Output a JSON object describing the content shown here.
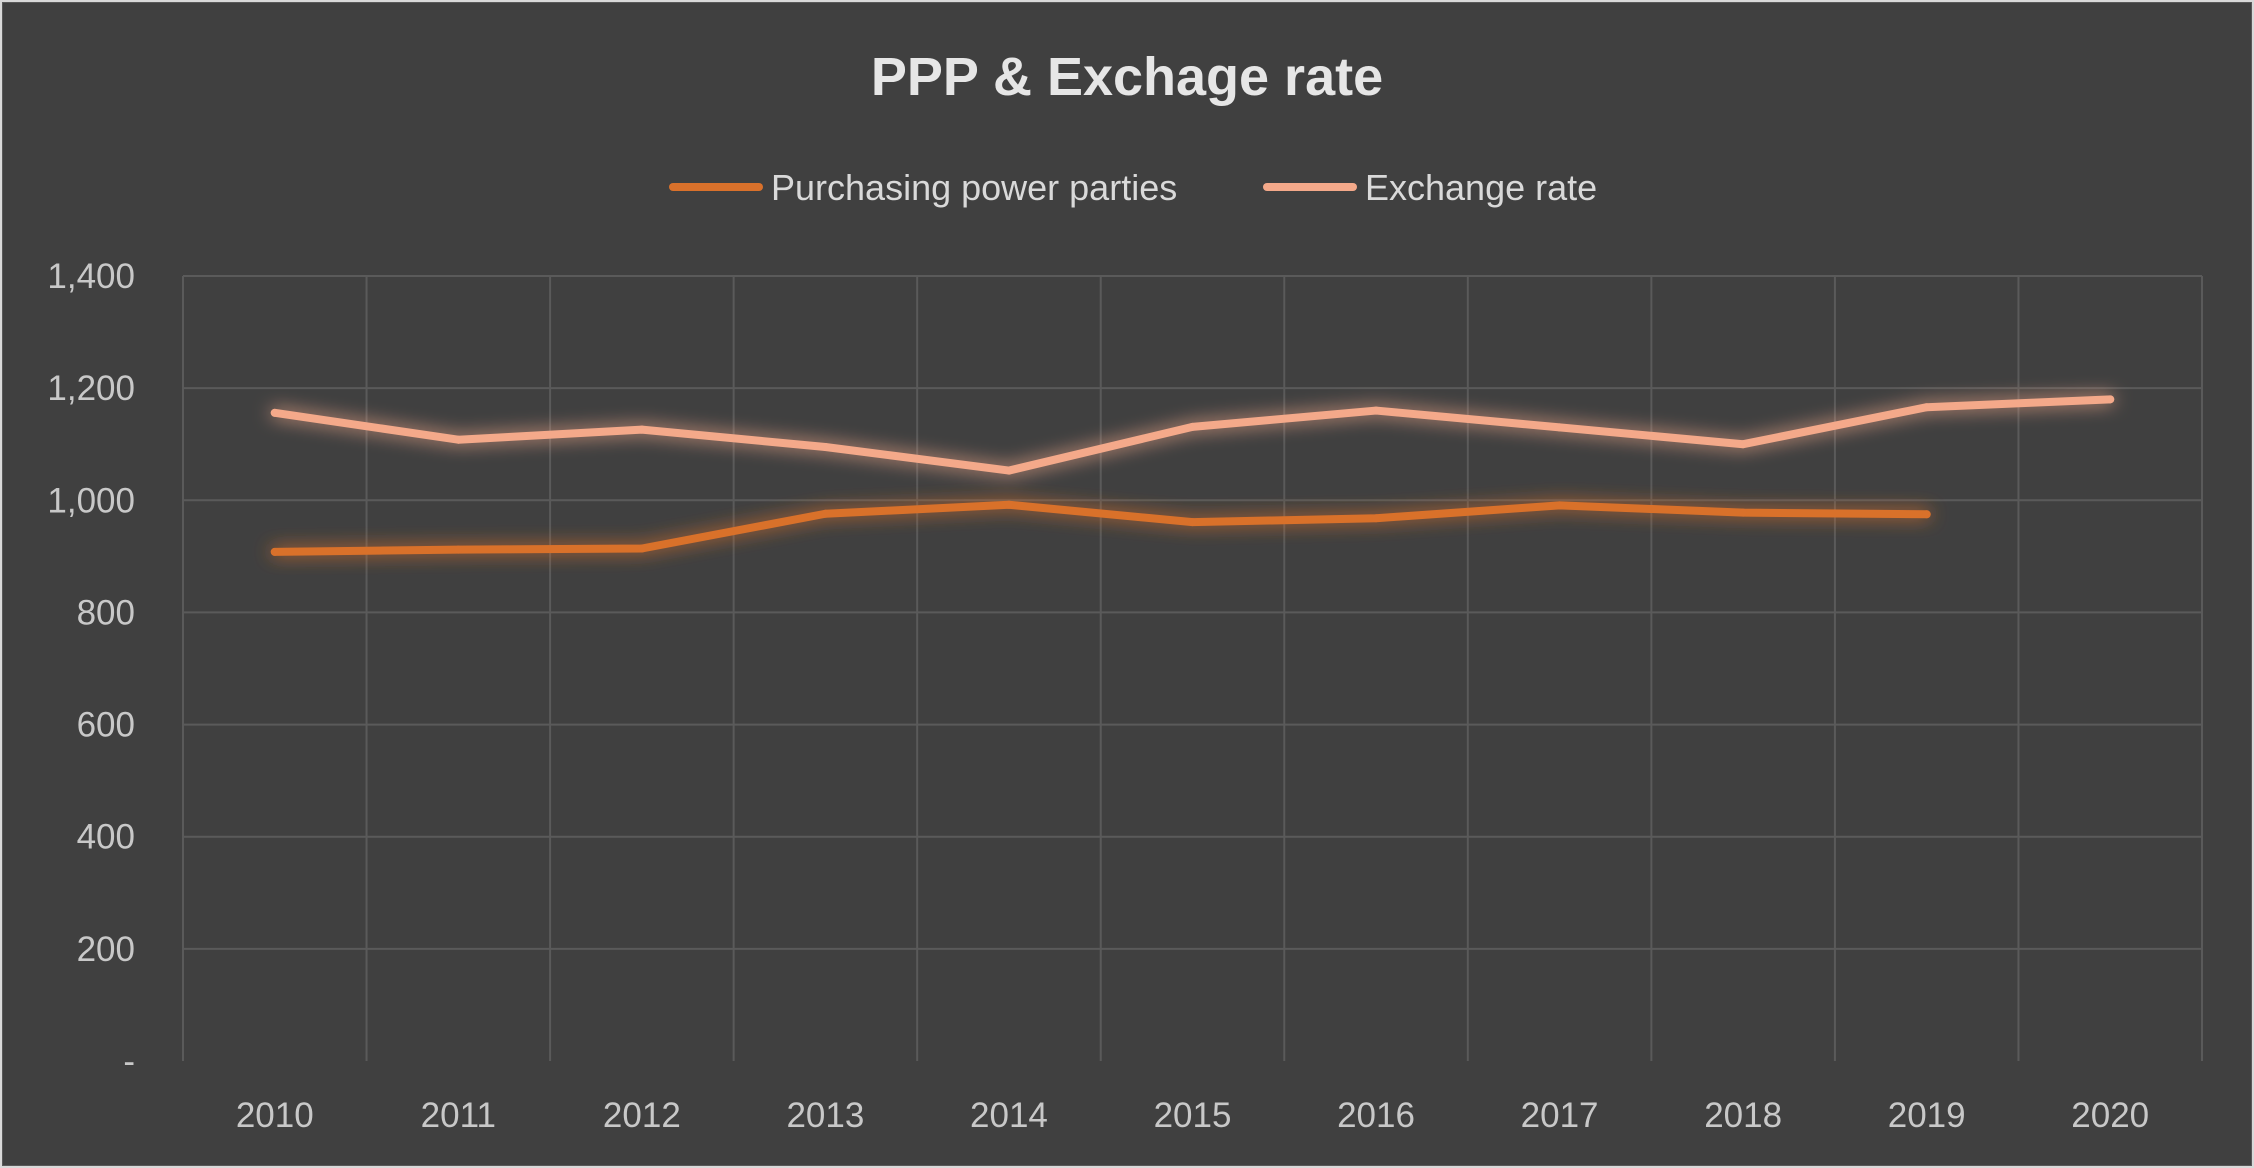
{
  "chart_data": {
    "type": "line",
    "title": "PPP & Exchage rate",
    "xlabel": "",
    "ylabel": "",
    "categories": [
      "2010",
      "2011",
      "2012",
      "2013",
      "2014",
      "2015",
      "2016",
      "2017",
      "2018",
      "2019",
      "2020"
    ],
    "ylim": [
      0,
      1400
    ],
    "yticks": [
      0,
      200,
      400,
      600,
      800,
      1000,
      1200,
      1400
    ],
    "ytick_labels": [
      "-",
      "200",
      "400",
      "600",
      "800",
      "1,000",
      "1,200",
      "1,400"
    ],
    "grid": true,
    "legend_position": "top",
    "series": [
      {
        "name": "Purchasing power parties",
        "color": "#d9712b",
        "values": [
          908,
          912,
          914,
          976,
          992,
          961,
          968,
          991,
          978,
          975,
          null
        ]
      },
      {
        "name": "Exchange rate",
        "color": "#f4a98a",
        "values": [
          1156,
          1108,
          1126,
          1095,
          1053,
          1131,
          1160,
          1130,
          1100,
          1166,
          1180
        ]
      }
    ]
  }
}
